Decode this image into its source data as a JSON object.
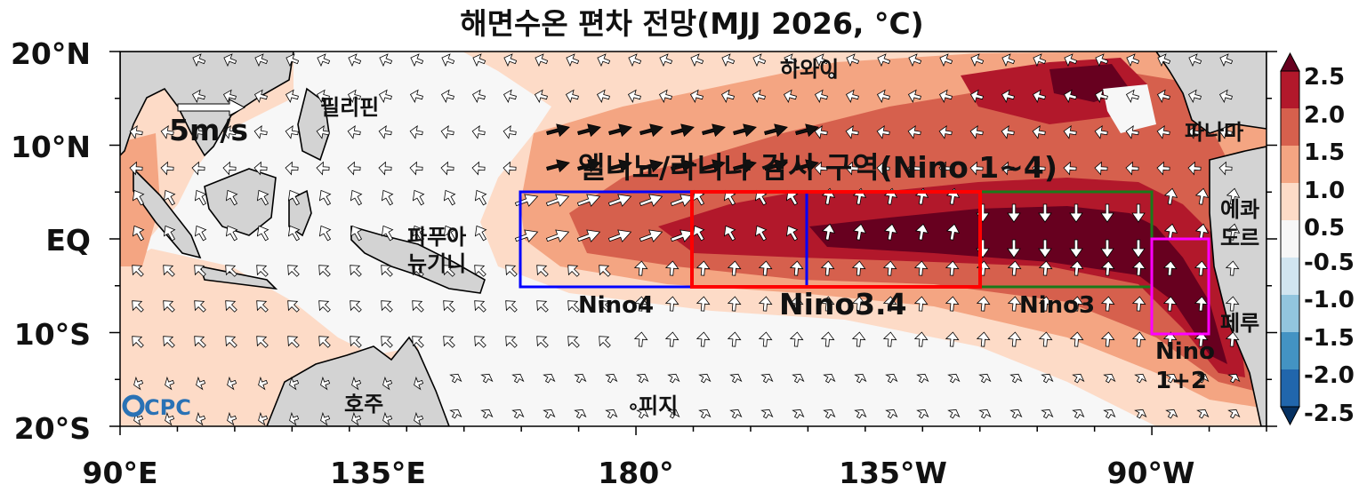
{
  "chart_data": {
    "type": "heatmap",
    "title": "해면수온 편차 전망(MJJ 2026, °C)",
    "lon_ticks": [
      "90°E",
      "135°E",
      "180°",
      "135°W",
      "90°W"
    ],
    "lat_ticks": [
      "20°N",
      "10°N",
      "EQ",
      "10°S",
      "20°S"
    ],
    "lon_range_deg_east": [
      90,
      290
    ],
    "lat_range": [
      -20,
      20
    ],
    "colorbar": {
      "labels": [
        "2.5",
        "2.0",
        "1.5",
        "1.0",
        "0.5",
        "-0.5",
        "-1.0",
        "-1.5",
        "-2.0",
        "-2.5"
      ],
      "levels": [
        -2.5,
        -2.0,
        -1.5,
        -1.0,
        -0.5,
        0.5,
        1.0,
        1.5,
        2.0,
        2.5
      ],
      "colors": [
        "#053061",
        "#2166ac",
        "#4393c3",
        "#92c5de",
        "#d1e5f0",
        "#f7f7f7",
        "#fddbc7",
        "#f4a582",
        "#d6604d",
        "#b2182b",
        "#67001f"
      ],
      "extend": "both"
    },
    "wind_reference": "5m/s",
    "annotations": {
      "monitoring_title": "엘니뇨/라니냐 감시 구역(Nino 1~4)",
      "places": [
        "하와이",
        "필리핀",
        "파나마",
        "파푸아",
        "뉴기니",
        "에콰",
        "도르",
        "페루",
        "호주",
        "피지"
      ]
    },
    "regions": [
      {
        "name": "Nino4",
        "lon": [
          160,
          210
        ],
        "lat": [
          -5,
          5
        ],
        "color": "#0000ff"
      },
      {
        "name": "Nino3.4",
        "lon": [
          190,
          240
        ],
        "lat": [
          -5,
          5
        ],
        "color": "#ff0000"
      },
      {
        "name": "Nino3",
        "lon": [
          210,
          270
        ],
        "lat": [
          -5,
          5
        ],
        "color": "#1a7a1a"
      },
      {
        "name_line1": "Nino",
        "name_line2": "1+2",
        "lon": [
          270,
          280
        ],
        "lat": [
          -10,
          0
        ],
        "color": "#ff00ff"
      }
    ],
    "logo_text": "CPC"
  }
}
